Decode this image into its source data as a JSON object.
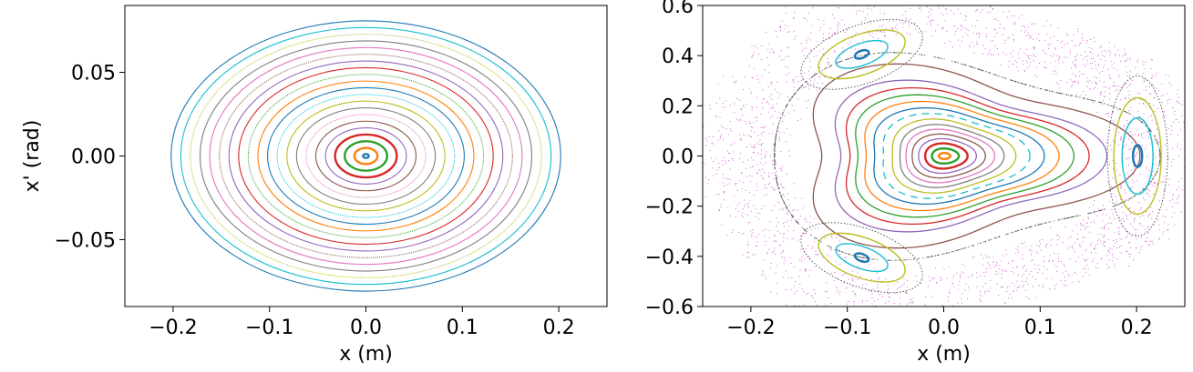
{
  "chart_data": [
    {
      "type": "scatter",
      "xlabel": "x (m)",
      "ylabel": "x' (rad)",
      "xlim": [
        -0.25,
        0.25
      ],
      "ylim": [
        -0.09,
        0.09
      ],
      "xticks": [
        -0.2,
        -0.1,
        0.0,
        0.1,
        0.2
      ],
      "xtick_labels": [
        "−0.2",
        "−0.1",
        "0.0",
        "0.1",
        "0.2"
      ],
      "yticks": [
        -0.05,
        0.0,
        0.05
      ],
      "ytick_labels": [
        "−0.05",
        "0.00",
        "0.05"
      ],
      "grid": false,
      "legend": "none",
      "series": [
        {
          "x_amp": 0.003,
          "y_amp": 0.0012,
          "color": "#1f77b4"
        },
        {
          "x_amp": 0.012,
          "y_amp": 0.0048,
          "color": "#ff7f0e"
        },
        {
          "x_amp": 0.022,
          "y_amp": 0.0088,
          "color": "#2ca02c"
        },
        {
          "x_amp": 0.032,
          "y_amp": 0.0128,
          "color": "#d62728"
        },
        {
          "x_amp": 0.042,
          "y_amp": 0.0168,
          "color": "#9467bd"
        },
        {
          "x_amp": 0.052,
          "y_amp": 0.0208,
          "color": "#8c564b"
        },
        {
          "x_amp": 0.062,
          "y_amp": 0.0248,
          "color": "#e377c2"
        },
        {
          "x_amp": 0.072,
          "y_amp": 0.0288,
          "color": "#7f7f7f"
        },
        {
          "x_amp": 0.082,
          "y_amp": 0.0328,
          "color": "#bcbd22"
        },
        {
          "x_amp": 0.092,
          "y_amp": 0.0368,
          "color": "#17becf"
        },
        {
          "x_amp": 0.102,
          "y_amp": 0.0408,
          "color": "#1f77b4"
        },
        {
          "x_amp": 0.112,
          "y_amp": 0.0448,
          "color": "#ff7f0e"
        },
        {
          "x_amp": 0.122,
          "y_amp": 0.0488,
          "color": "#2ca02c"
        },
        {
          "x_amp": 0.132,
          "y_amp": 0.0528,
          "color": "#d62728"
        },
        {
          "x_amp": 0.142,
          "y_amp": 0.0568,
          "color": "#9467bd"
        },
        {
          "x_amp": 0.152,
          "y_amp": 0.0608,
          "color": "#8c564b"
        },
        {
          "x_amp": 0.162,
          "y_amp": 0.0648,
          "color": "#e377c2"
        },
        {
          "x_amp": 0.172,
          "y_amp": 0.0688,
          "color": "#7f7f7f"
        },
        {
          "x_amp": 0.182,
          "y_amp": 0.0728,
          "color": "#bcbd22"
        },
        {
          "x_amp": 0.192,
          "y_amp": 0.0768,
          "color": "#17becf"
        },
        {
          "x_amp": 0.202,
          "y_amp": 0.0808,
          "color": "#1f77b4"
        }
      ]
    },
    {
      "type": "scatter",
      "xlabel": "x (m)",
      "ylabel": "",
      "xlim": [
        -0.25,
        0.25
      ],
      "ylim": [
        -0.6,
        0.6
      ],
      "xticks": [
        -0.2,
        -0.1,
        0.0,
        0.1,
        0.2
      ],
      "xtick_labels": [
        "−0.2",
        "−0.1",
        "0.0",
        "0.1",
        "0.2"
      ],
      "yticks": [
        -0.6,
        -0.4,
        -0.2,
        0.0,
        0.2,
        0.4,
        0.6
      ],
      "ytick_labels": [
        "−0.6",
        "−0.4",
        "−0.2",
        "0.0",
        "0.2",
        "0.4",
        "0.6"
      ],
      "grid": false,
      "legend": "none",
      "series": [
        {
          "x_amp": 0.006,
          "y_amp": 0.012,
          "color": "#ff7f0e"
        },
        {
          "x_amp": 0.014,
          "y_amp": 0.03,
          "color": "#2ca02c"
        },
        {
          "x_amp": 0.022,
          "y_amp": 0.05,
          "color": "#d62728"
        },
        {
          "x_amp": 0.03,
          "y_amp": 0.068,
          "color": "#9467bd"
        },
        {
          "x_amp": 0.038,
          "y_amp": 0.086,
          "color": "#8c564b"
        },
        {
          "x_amp": 0.046,
          "y_amp": 0.104,
          "color": "#e377c2"
        },
        {
          "x_amp": 0.054,
          "y_amp": 0.122,
          "color": "#7f7f7f"
        },
        {
          "x_amp": 0.064,
          "y_amp": 0.142,
          "color": "#bcbd22"
        },
        {
          "x_amp": 0.076,
          "y_amp": 0.162,
          "color": "#17becf",
          "dashed": true
        },
        {
          "x_amp": 0.088,
          "y_amp": 0.182,
          "color": "#1f77b4"
        },
        {
          "x_amp": 0.1,
          "y_amp": 0.205,
          "color": "#ff7f0e"
        },
        {
          "x_amp": 0.112,
          "y_amp": 0.228,
          "color": "#2ca02c"
        },
        {
          "x_amp": 0.124,
          "y_amp": 0.252,
          "color": "#d62728"
        },
        {
          "x_amp": 0.138,
          "y_amp": 0.278,
          "color": "#9467bd"
        },
        {
          "x_amp": 0.165,
          "y_amp": 0.335,
          "color": "#8c564b"
        }
      ],
      "islands": [
        {
          "cx": 0.201,
          "cy": 0.0,
          "orient": "vertical"
        },
        {
          "cx": -0.085,
          "cy": 0.405,
          "orient": "tilted"
        },
        {
          "cx": -0.085,
          "cy": -0.405,
          "orient": "tilted-down"
        }
      ]
    }
  ]
}
